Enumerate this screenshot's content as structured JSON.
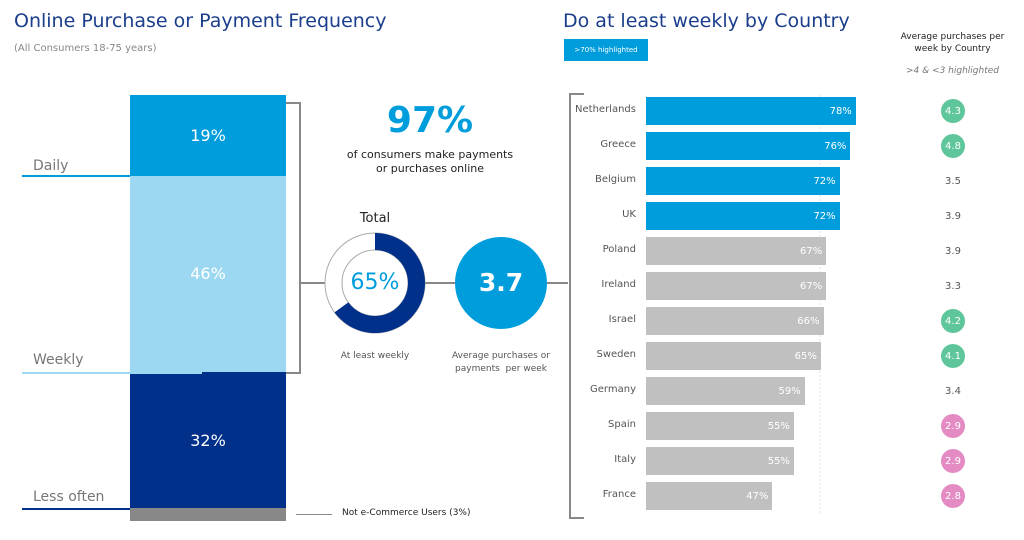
{
  "left": {
    "title": "Online Purchase or Payment Frequency",
    "subtitle": "(All Consumers 18-75 years)",
    "levels": [
      "Daily",
      "Weekly",
      "Less often"
    ],
    "not_users_label": "Not e-Commerce Users (3%)",
    "headline_value": "97%",
    "headline_text_1": "of consumers make payments",
    "headline_text_2": "or purchases online",
    "donut_title": "Total",
    "donut_value": "65%",
    "donut_fraction": 0.65,
    "donut_caption": "At least weekly",
    "avg_value": "3.7",
    "avg_caption_1": "Average purchases or",
    "avg_caption_2": "payments  per week"
  },
  "right": {
    "title": "Do at least weekly by Country",
    "badge": ">70% highlighted",
    "avg_header_1": "Average purchases per",
    "avg_header_2": "week by Country",
    "avg_note": ">4 & <3 highlighted"
  },
  "colors": {
    "daily": "#009ddc",
    "weekly": "#9dd8f2",
    "less": "#00308a",
    "none": "#888888",
    "highlight": "#009ddc",
    "grey": "#c0c0c0",
    "green": "#5ec69a",
    "pink": "#e48bc4"
  },
  "chart_data": [
    {
      "type": "bar",
      "title": "Online Purchase or Payment Frequency",
      "categories": [
        "Daily",
        "Weekly",
        "Less often",
        "Not e-Commerce Users"
      ],
      "values": [
        19,
        46,
        32,
        3
      ],
      "labels": [
        "19%",
        "46%",
        "32%",
        ""
      ]
    },
    {
      "type": "bar",
      "title": "Do at least weekly by Country",
      "categories": [
        "Netherlands",
        "Greece",
        "Belgium",
        "UK",
        "Poland",
        "Ireland",
        "Israel",
        "Sweden",
        "Germany",
        "Spain",
        "Italy",
        "France"
      ],
      "values": [
        78,
        76,
        72,
        72,
        67,
        67,
        66,
        65,
        59,
        55,
        55,
        47
      ],
      "labels": [
        "78%",
        "76%",
        "72%",
        "72%",
        "67%",
        "67%",
        "66%",
        "65%",
        "59%",
        "55%",
        "55%",
        "47%"
      ],
      "avg_purchases": [
        "4.3",
        "4.8",
        "3.5",
        "3.9",
        "3.9",
        "3.3",
        "4.2",
        "4.1",
        "3.4",
        "2.9",
        "2.9",
        "2.8"
      ]
    }
  ]
}
